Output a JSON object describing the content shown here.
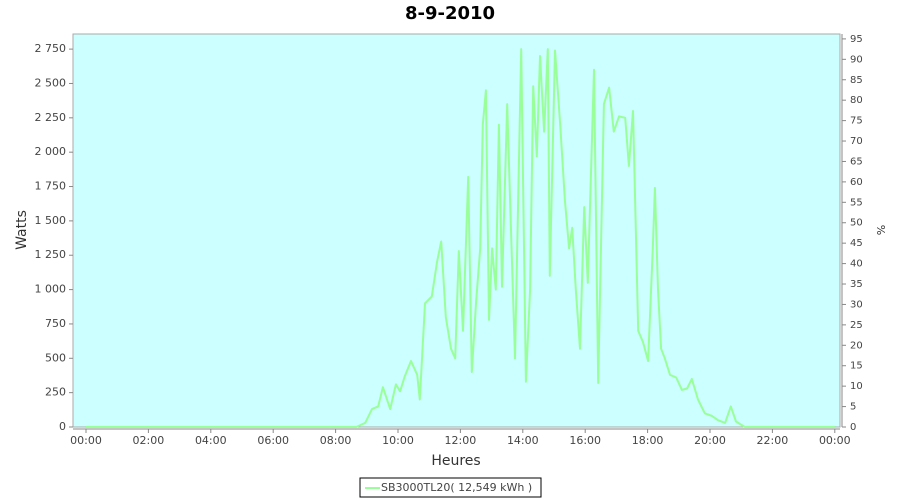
{
  "chart_data": {
    "type": "line",
    "title": "8-9-2010",
    "x_label": "Heures",
    "y_label": "Watts",
    "y2_label": "%",
    "x": [
      0,
      520,
      537,
      550,
      562,
      571,
      585,
      596,
      604,
      613,
      625,
      637,
      642,
      652,
      665,
      675,
      683,
      692,
      702,
      710,
      717,
      725,
      735,
      742,
      750,
      758,
      763,
      769,
      775,
      781,
      788,
      794,
      800,
      810,
      817,
      825,
      837,
      846,
      854,
      860,
      867,
      873,
      881,
      888,
      892,
      902,
      912,
      921,
      929,
      935,
      942,
      950,
      958,
      965,
      977,
      985,
      996,
      1006,
      1015,
      1025,
      1037,
      1044,
      1052,
      1062,
      1071,
      1081,
      1090,
      1094,
      1100,
      1106,
      1113,
      1123,
      1135,
      1146,
      1156,
      1165,
      1177,
      1190,
      1204,
      1215,
      1229,
      1240,
      1250,
      1267,
      1440
    ],
    "series": [
      {
        "name": "SB3000TL20( 12,549 kWh )",
        "color": "#99ff99",
        "values": [
          0,
          0,
          30,
          130,
          150,
          290,
          130,
          310,
          260,
          370,
          480,
          380,
          200,
          900,
          950,
          1200,
          1350,
          800,
          570,
          500,
          1280,
          700,
          1820,
          400,
          900,
          1300,
          2200,
          2450,
          780,
          1300,
          1000,
          2200,
          1020,
          2350,
          1480,
          500,
          2750,
          330,
          1000,
          2480,
          1970,
          2700,
          2150,
          2750,
          1100,
          2740,
          2200,
          1650,
          1300,
          1450,
          1000,
          570,
          1600,
          1050,
          2600,
          320,
          2350,
          2470,
          2150,
          2260,
          2250,
          1900,
          2300,
          700,
          620,
          480,
          1300,
          1740,
          1000,
          570,
          500,
          380,
          360,
          270,
          280,
          350,
          200,
          100,
          80,
          50,
          30,
          150,
          40,
          0,
          0
        ]
      }
    ],
    "xlim": [
      -25,
      1450
    ],
    "xticks": [
      {
        "value": 0,
        "label": "00:00"
      },
      {
        "value": 120,
        "label": "02:00"
      },
      {
        "value": 240,
        "label": "04:00"
      },
      {
        "value": 360,
        "label": "06:00"
      },
      {
        "value": 480,
        "label": "08:00"
      },
      {
        "value": 600,
        "label": "10:00"
      },
      {
        "value": 720,
        "label": "12:00"
      },
      {
        "value": 840,
        "label": "14:00"
      },
      {
        "value": 960,
        "label": "16:00"
      },
      {
        "value": 1080,
        "label": "18:00"
      },
      {
        "value": 1200,
        "label": "20:00"
      },
      {
        "value": 1320,
        "label": "22:00"
      },
      {
        "value": 1440,
        "label": "00:00"
      }
    ],
    "ylim": [
      0,
      2860
    ],
    "yticks": [
      0,
      250,
      500,
      750,
      {
        "value": 1000,
        "label": "1 000"
      },
      {
        "value": 1250,
        "label": "1 250"
      },
      {
        "value": 1500,
        "label": "1 500"
      },
      {
        "value": 1750,
        "label": "1 750"
      },
      {
        "value": 2000,
        "label": "2 000"
      },
      {
        "value": 2250,
        "label": "2 250"
      },
      {
        "value": 2500,
        "label": "2 500"
      },
      {
        "value": 2750,
        "label": "2 750"
      }
    ],
    "y2lim": [
      0,
      96.2
    ],
    "y2ticks": [
      0,
      5,
      10,
      15,
      20,
      25,
      30,
      35,
      40,
      45,
      50,
      55,
      60,
      65,
      70,
      75,
      80,
      85,
      90,
      95
    ],
    "plot_background": "#ccffff",
    "grid": false
  }
}
